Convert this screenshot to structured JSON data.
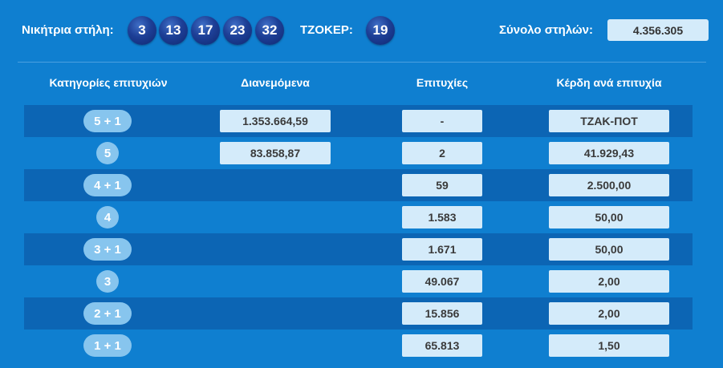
{
  "header": {
    "winning_label": "Νικήτρια στήλη:",
    "numbers": [
      "3",
      "13",
      "17",
      "23",
      "32"
    ],
    "joker_label": "ΤΖΟΚΕΡ:",
    "joker": "19",
    "total_label": "Σύνολο στηλών:",
    "total_value": "4.356.305"
  },
  "table": {
    "columns": [
      "Κατηγορίες επιτυχιών",
      "Διανεμόμενα",
      "Επιτυχίες",
      "Κέρδη ανά επιτυχία"
    ],
    "rows": [
      {
        "category": "5 + 1",
        "distributed": "1.353.664,59",
        "winners": "-",
        "prize": "ΤΖΑΚ-ΠΟΤ"
      },
      {
        "category": "5",
        "distributed": "83.858,87",
        "winners": "2",
        "prize": "41.929,43"
      },
      {
        "category": "4 + 1",
        "distributed": "",
        "winners": "59",
        "prize": "2.500,00"
      },
      {
        "category": "4",
        "distributed": "",
        "winners": "1.583",
        "prize": "50,00"
      },
      {
        "category": "3 + 1",
        "distributed": "",
        "winners": "1.671",
        "prize": "50,00"
      },
      {
        "category": "3",
        "distributed": "",
        "winners": "49.067",
        "prize": "2,00"
      },
      {
        "category": "2 + 1",
        "distributed": "",
        "winners": "15.856",
        "prize": "2,00"
      },
      {
        "category": "1 + 1",
        "distributed": "",
        "winners": "65.813",
        "prize": "1,50"
      }
    ]
  },
  "colors": {
    "background": "#0f7fd0",
    "row_dark": "#0c65b4",
    "cell_bg": "#d4ebfa",
    "ball": "#1d3f96",
    "pill": "#87c5ee"
  }
}
